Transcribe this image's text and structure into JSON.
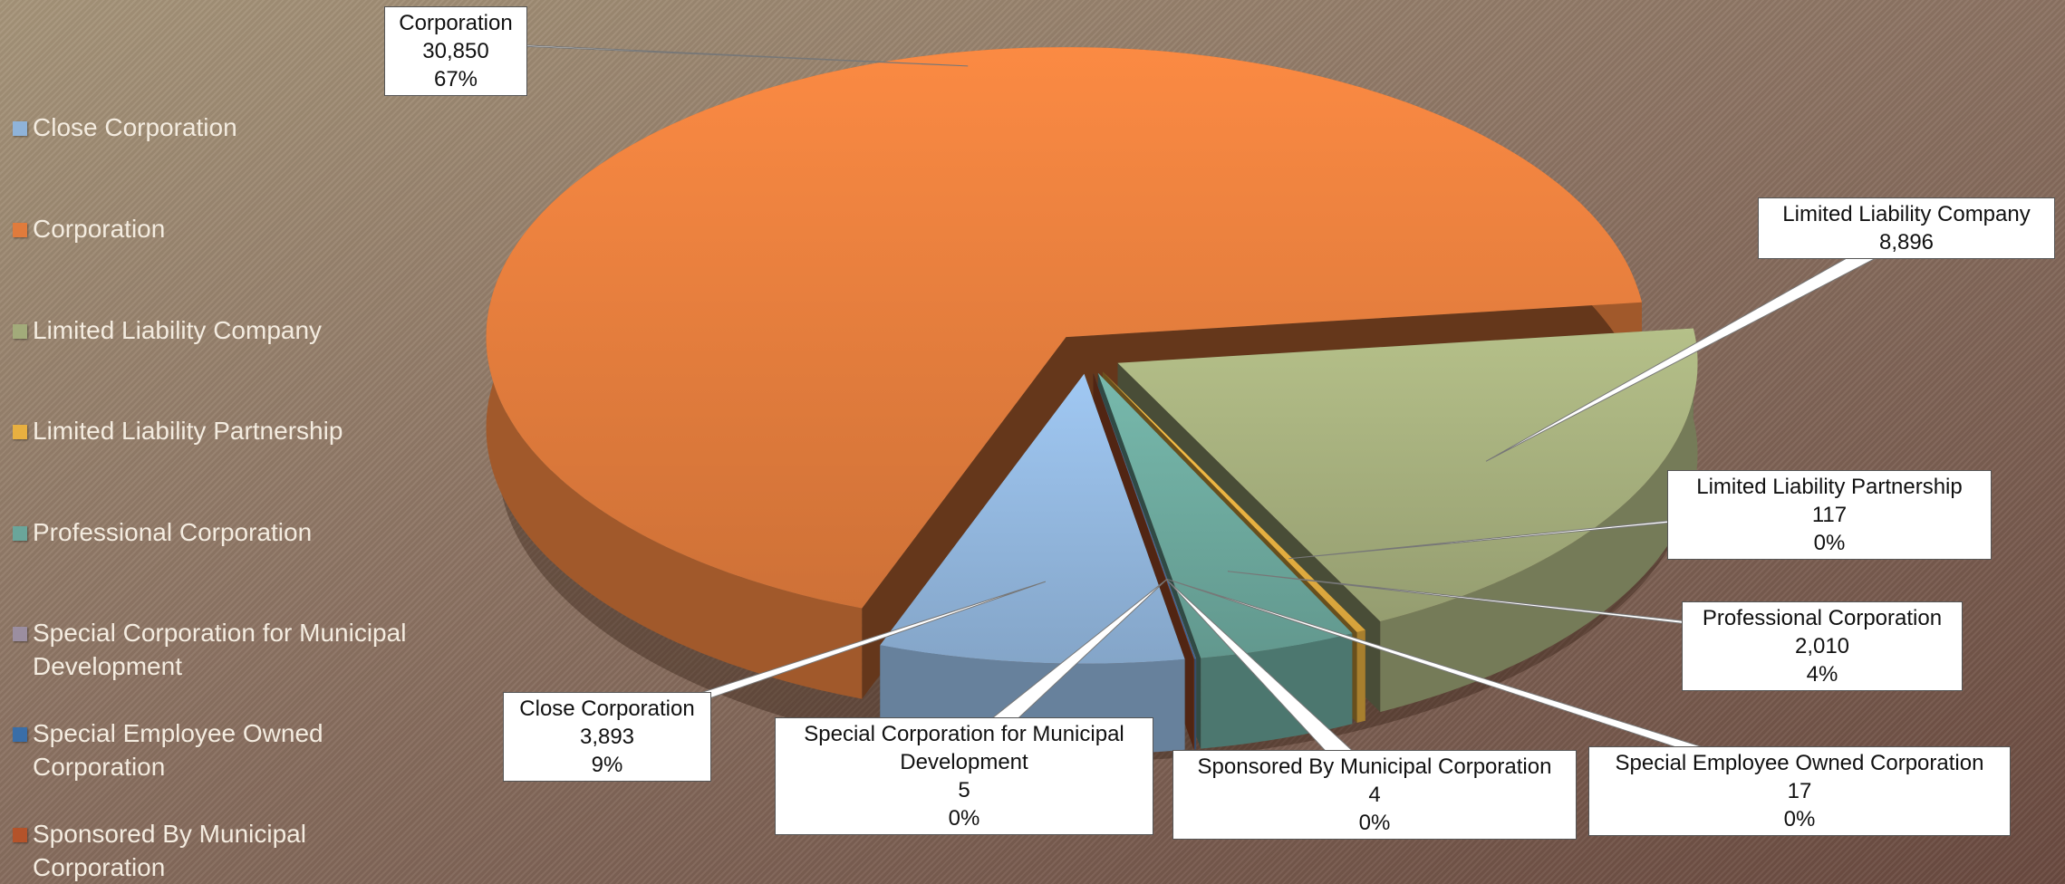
{
  "chart_data": {
    "type": "pie",
    "categories": [
      "Close Corporation",
      "Corporation",
      "Limited Liability Company",
      "Limited Liability Partnership",
      "Professional Corporation",
      "Special Corporation for Municipal Development",
      "Special Employee Owned Corporation",
      "Sponsored By Municipal Corporation"
    ],
    "values": [
      3893,
      30850,
      8896,
      117,
      2010,
      5,
      17,
      4
    ],
    "value_labels": [
      "3,893",
      "30,850",
      "8,896",
      "117",
      "2,010",
      "5",
      "17",
      "4"
    ],
    "percent_labels": [
      "9%",
      "67%",
      null,
      "0%",
      "4%",
      "0%",
      "0%",
      "0%"
    ],
    "colors": [
      "#8fb3d9",
      "#e07b3c",
      "#a2ab7a",
      "#e8b040",
      "#6aa59a",
      "#9b8ea0",
      "#3a6ea8",
      "#b4532a"
    ],
    "legend": "left"
  }
}
